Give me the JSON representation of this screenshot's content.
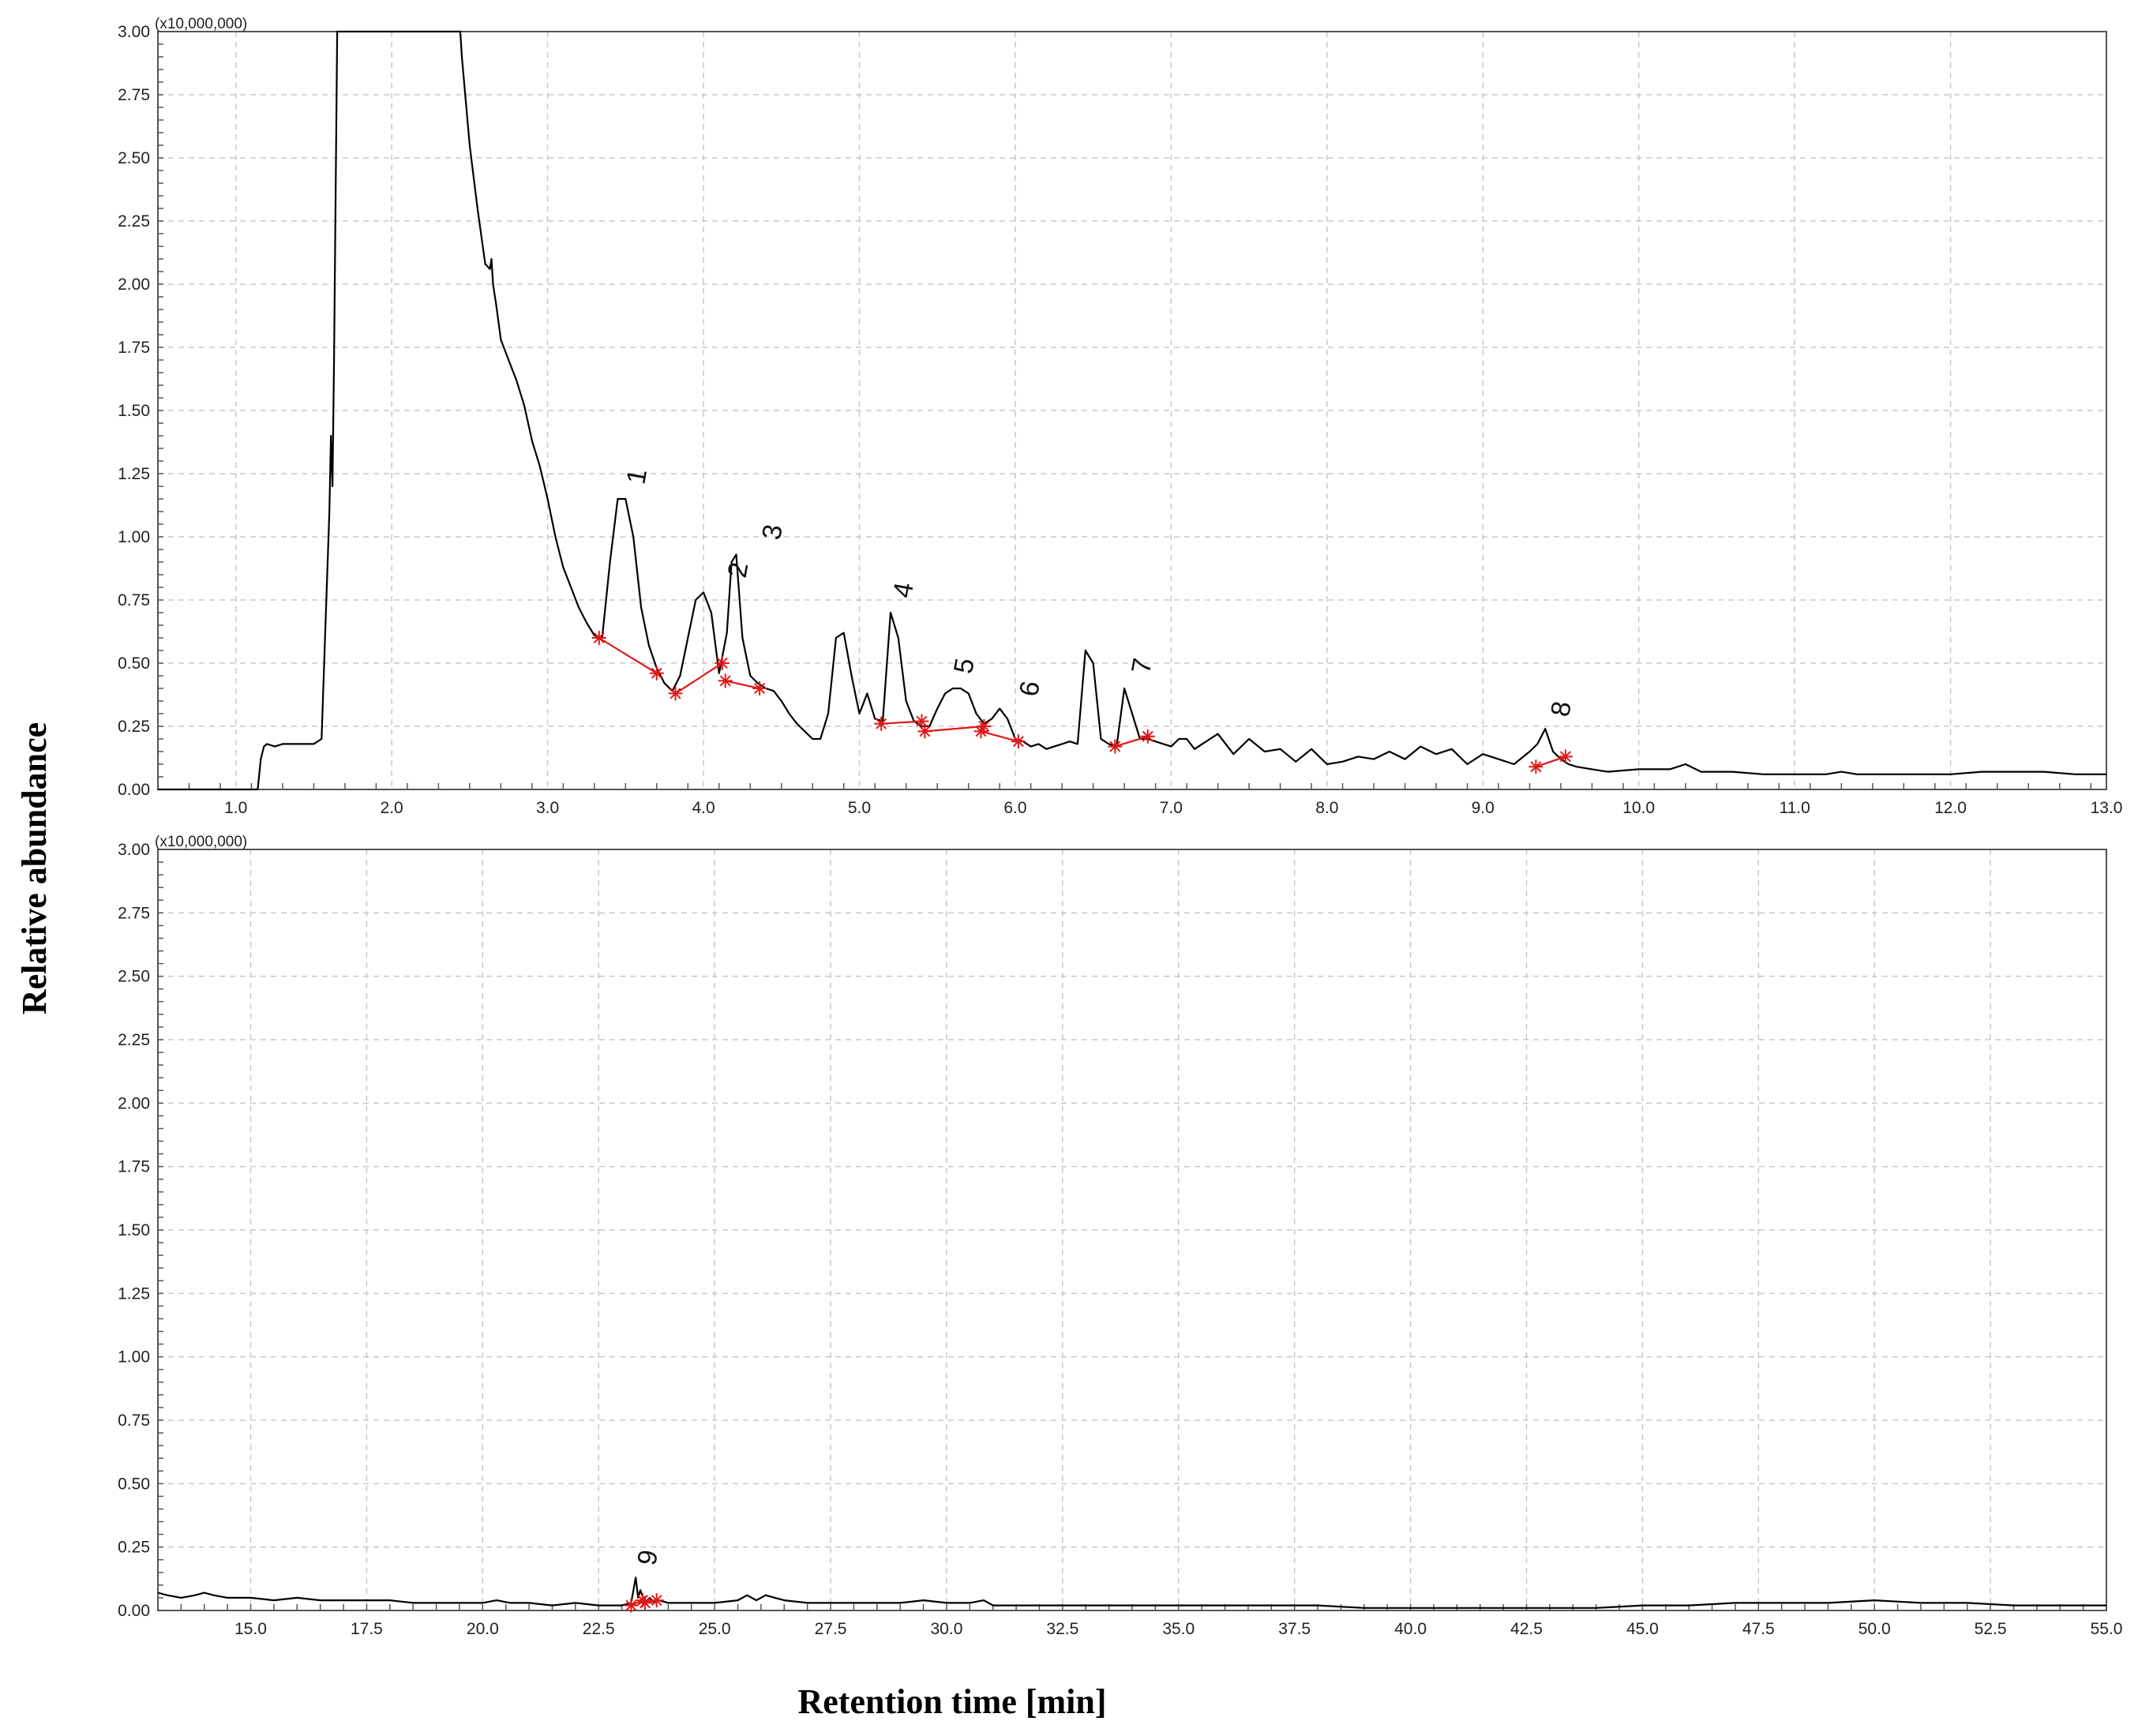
{
  "chart_data": [
    {
      "type": "line",
      "panel": "top",
      "multiplier_label": "(x10,000,000)",
      "xlim": [
        0.5,
        13.0
      ],
      "ylim": [
        0.0,
        3.0
      ],
      "x_ticks": [
        1.0,
        2.0,
        3.0,
        4.0,
        5.0,
        6.0,
        7.0,
        8.0,
        9.0,
        10.0,
        11.0,
        12.0,
        13.0
      ],
      "x_tick_labels": [
        "1.0",
        "2.0",
        "3.0",
        "4.0",
        "5.0",
        "6.0",
        "7.0",
        "8.0",
        "9.0",
        "10.0",
        "11.0",
        "12.0",
        "13.0"
      ],
      "y_ticks": [
        0.0,
        0.25,
        0.5,
        0.75,
        1.0,
        1.25,
        1.5,
        1.75,
        2.0,
        2.25,
        2.5,
        2.75,
        3.0
      ],
      "y_tick_labels": [
        "0.00",
        "0.25",
        "0.50",
        "0.75",
        "1.00",
        "1.25",
        "1.50",
        "1.75",
        "2.00",
        "2.25",
        "2.50",
        "2.75",
        "3.00"
      ],
      "grid": true,
      "series": [
        {
          "x": [
            0.5,
            1.14,
            1.16,
            1.18,
            1.2,
            1.25,
            1.3,
            1.5,
            1.55,
            1.6,
            1.61,
            1.62,
            1.63,
            1.65,
            1.68,
            2.1,
            2.44,
            2.45,
            2.5,
            2.55,
            2.6,
            2.63,
            2.64,
            2.65,
            2.67,
            2.7,
            2.75,
            2.8,
            2.85,
            2.9,
            2.95,
            3.0,
            3.05,
            3.1,
            3.15,
            3.2,
            3.25,
            3.3,
            3.35,
            3.4,
            3.45,
            3.5,
            3.55,
            3.6,
            3.65,
            3.7,
            3.75,
            3.8,
            3.85,
            3.9,
            3.95,
            4.0,
            4.05,
            4.1,
            4.15,
            4.18,
            4.21,
            4.25,
            4.3,
            4.35,
            4.4,
            4.45,
            4.5,
            4.55,
            4.6,
            4.65,
            4.7,
            4.75,
            4.8,
            4.85,
            4.9,
            4.95,
            5.0,
            5.05,
            5.1,
            5.15,
            5.2,
            5.25,
            5.3,
            5.35,
            5.4,
            5.45,
            5.5,
            5.55,
            5.6,
            5.65,
            5.7,
            5.75,
            5.8,
            5.85,
            5.9,
            5.95,
            6.0,
            6.05,
            6.1,
            6.15,
            6.2,
            6.25,
            6.3,
            6.35,
            6.4,
            6.45,
            6.5,
            6.55,
            6.6,
            6.65,
            6.7,
            6.75,
            6.8,
            6.85,
            6.9,
            6.95,
            7.0,
            7.05,
            7.1,
            7.15,
            7.2,
            7.3,
            7.4,
            7.5,
            7.6,
            7.7,
            7.8,
            7.9,
            8.0,
            8.1,
            8.2,
            8.3,
            8.4,
            8.5,
            8.6,
            8.7,
            8.8,
            8.9,
            9.0,
            9.1,
            9.2,
            9.3,
            9.35,
            9.4,
            9.45,
            9.5,
            9.55,
            9.6,
            9.7,
            9.8,
            10.0,
            10.2,
            10.3,
            10.4,
            10.6,
            10.8,
            11.0,
            11.2,
            11.3,
            11.4,
            11.6,
            11.8,
            12.0,
            12.2,
            12.4,
            12.6,
            12.8,
            13.0
          ],
          "y": [
            0.0,
            0.0,
            0.12,
            0.17,
            0.18,
            0.17,
            0.18,
            0.18,
            0.2,
            1.1,
            1.4,
            1.2,
            1.7,
            3.0,
            3.0,
            3.0,
            3.0,
            2.9,
            2.55,
            2.3,
            2.08,
            2.06,
            2.1,
            2.0,
            1.92,
            1.78,
            1.7,
            1.62,
            1.52,
            1.38,
            1.28,
            1.15,
            1.0,
            0.88,
            0.8,
            0.72,
            0.66,
            0.61,
            0.6,
            0.9,
            1.15,
            1.15,
            1.0,
            0.72,
            0.57,
            0.48,
            0.42,
            0.39,
            0.45,
            0.6,
            0.75,
            0.78,
            0.7,
            0.46,
            0.62,
            0.9,
            0.93,
            0.6,
            0.45,
            0.42,
            0.4,
            0.39,
            0.35,
            0.3,
            0.26,
            0.23,
            0.2,
            0.2,
            0.3,
            0.6,
            0.62,
            0.45,
            0.3,
            0.38,
            0.28,
            0.27,
            0.7,
            0.6,
            0.35,
            0.27,
            0.25,
            0.25,
            0.32,
            0.38,
            0.4,
            0.4,
            0.38,
            0.3,
            0.26,
            0.28,
            0.32,
            0.28,
            0.2,
            0.19,
            0.17,
            0.18,
            0.16,
            0.17,
            0.18,
            0.19,
            0.18,
            0.55,
            0.5,
            0.2,
            0.18,
            0.17,
            0.4,
            0.3,
            0.2,
            0.2,
            0.19,
            0.18,
            0.17,
            0.2,
            0.2,
            0.16,
            0.18,
            0.22,
            0.14,
            0.2,
            0.15,
            0.16,
            0.11,
            0.16,
            0.1,
            0.11,
            0.13,
            0.12,
            0.15,
            0.12,
            0.17,
            0.14,
            0.16,
            0.1,
            0.14,
            0.12,
            0.1,
            0.15,
            0.18,
            0.24,
            0.15,
            0.12,
            0.1,
            0.09,
            0.08,
            0.07,
            0.08,
            0.08,
            0.1,
            0.07,
            0.07,
            0.06,
            0.06,
            0.06,
            0.07,
            0.06,
            0.06,
            0.06,
            0.06,
            0.07,
            0.07,
            0.07,
            0.06,
            0.06
          ]
        }
      ],
      "baseline_segments": [
        [
          [
            3.33,
            0.6
          ],
          [
            3.7,
            0.46
          ]
        ],
        [
          [
            3.82,
            0.38
          ],
          [
            4.12,
            0.5
          ]
        ],
        [
          [
            4.14,
            0.43
          ],
          [
            4.36,
            0.4
          ]
        ],
        [
          [
            5.14,
            0.26
          ],
          [
            5.4,
            0.27
          ]
        ],
        [
          [
            5.42,
            0.23
          ],
          [
            5.8,
            0.25
          ]
        ],
        [
          [
            5.78,
            0.23
          ],
          [
            6.02,
            0.19
          ]
        ],
        [
          [
            6.64,
            0.17
          ],
          [
            6.85,
            0.21
          ]
        ],
        [
          [
            9.34,
            0.09
          ],
          [
            9.53,
            0.13
          ]
        ]
      ],
      "annotations": [
        {
          "label": "1",
          "x": 3.62,
          "y": 1.16
        },
        {
          "label": "2",
          "x": 4.27,
          "y": 0.79
        },
        {
          "label": "3",
          "x": 4.49,
          "y": 0.94
        },
        {
          "label": "4",
          "x": 5.33,
          "y": 0.71
        },
        {
          "label": "5",
          "x": 5.72,
          "y": 0.41
        },
        {
          "label": "6",
          "x": 6.14,
          "y": 0.32
        },
        {
          "label": "7",
          "x": 6.86,
          "y": 0.41
        },
        {
          "label": "8",
          "x": 9.55,
          "y": 0.24
        }
      ]
    },
    {
      "type": "line",
      "panel": "bottom",
      "multiplier_label": "(x10,000,000)",
      "xlim": [
        13.0,
        55.0
      ],
      "ylim": [
        0.0,
        3.0
      ],
      "x_ticks": [
        15.0,
        17.5,
        20.0,
        22.5,
        25.0,
        27.5,
        30.0,
        32.5,
        35.0,
        37.5,
        40.0,
        42.5,
        45.0,
        47.5,
        50.0,
        52.5,
        55.0
      ],
      "x_tick_labels": [
        "15.0",
        "17.5",
        "20.0",
        "22.5",
        "25.0",
        "27.5",
        "30.0",
        "32.5",
        "35.0",
        "37.5",
        "40.0",
        "42.5",
        "45.0",
        "47.5",
        "50.0",
        "52.5",
        "55.0"
      ],
      "y_ticks": [
        0.0,
        0.25,
        0.5,
        0.75,
        1.0,
        1.25,
        1.5,
        1.75,
        2.0,
        2.25,
        2.5,
        2.75,
        3.0
      ],
      "y_tick_labels": [
        "0.00",
        "0.25",
        "0.50",
        "0.75",
        "1.00",
        "1.25",
        "1.50",
        "1.75",
        "2.00",
        "2.25",
        "2.50",
        "2.75",
        "3.00"
      ],
      "grid": true,
      "series": [
        {
          "x": [
            13.0,
            13.2,
            13.5,
            13.8,
            14.0,
            14.2,
            14.5,
            15.0,
            15.5,
            16.0,
            16.5,
            17.0,
            17.5,
            18.0,
            18.5,
            19.0,
            19.5,
            20.0,
            20.3,
            20.6,
            21.0,
            21.5,
            22.0,
            22.5,
            23.0,
            23.2,
            23.3,
            23.35,
            23.4,
            23.5,
            23.6,
            23.7,
            23.8,
            24.0,
            24.5,
            25.0,
            25.5,
            25.7,
            25.9,
            26.1,
            26.3,
            26.5,
            27.0,
            27.5,
            28.0,
            29.0,
            29.5,
            30.0,
            30.5,
            30.8,
            31.0,
            32.0,
            33.0,
            34.0,
            35.0,
            36.0,
            37.0,
            38.0,
            39.0,
            40.0,
            41.0,
            42.0,
            43.0,
            44.0,
            45.0,
            46.0,
            47.0,
            48.0,
            49.0,
            50.0,
            51.0,
            52.0,
            53.0,
            54.0,
            55.0
          ],
          "y": [
            0.07,
            0.06,
            0.05,
            0.06,
            0.07,
            0.06,
            0.05,
            0.05,
            0.04,
            0.05,
            0.04,
            0.04,
            0.04,
            0.04,
            0.03,
            0.03,
            0.03,
            0.03,
            0.04,
            0.03,
            0.03,
            0.02,
            0.03,
            0.02,
            0.02,
            0.03,
            0.13,
            0.05,
            0.08,
            0.03,
            0.05,
            0.03,
            0.04,
            0.03,
            0.03,
            0.03,
            0.04,
            0.06,
            0.04,
            0.06,
            0.05,
            0.04,
            0.03,
            0.03,
            0.03,
            0.03,
            0.04,
            0.03,
            0.03,
            0.04,
            0.02,
            0.02,
            0.02,
            0.02,
            0.02,
            0.02,
            0.02,
            0.02,
            0.01,
            0.01,
            0.01,
            0.01,
            0.01,
            0.01,
            0.02,
            0.02,
            0.03,
            0.03,
            0.03,
            0.04,
            0.03,
            0.03,
            0.02,
            0.02,
            0.02
          ]
        }
      ],
      "baseline_segments": [
        [
          [
            23.2,
            0.02
          ],
          [
            23.45,
            0.04
          ]
        ],
        [
          [
            23.5,
            0.03
          ],
          [
            23.75,
            0.04
          ]
        ]
      ],
      "annotations": [
        {
          "label": "9",
          "x": 23.72,
          "y": 0.13
        }
      ]
    }
  ],
  "axis_titles": {
    "ylabel": "Relative abundance",
    "xlabel": "Retention time [min]"
  }
}
